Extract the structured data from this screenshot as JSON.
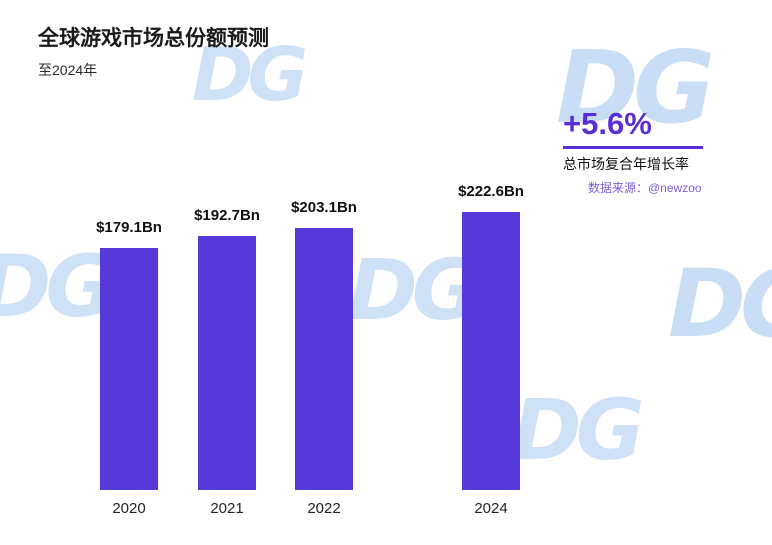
{
  "header": {
    "title": "全球游戏市场总份额预测",
    "subtitle": "至2024年"
  },
  "stats": {
    "growth_value": "+5.6%",
    "growth_label": "总市场复合年增长率",
    "source": "数据来源：@newzoo"
  },
  "watermark": {
    "text": "DG",
    "color": "#cfe1f7"
  },
  "chart_data": {
    "type": "bar",
    "title": "全球游戏市场总份额预测",
    "subtitle": "至2024年",
    "categories": [
      "2020",
      "2021",
      "2022",
      "2024"
    ],
    "values": [
      179.1,
      192.7,
      203.1,
      222.6
    ],
    "value_labels": [
      "$179.1Bn",
      "$192.7Bn",
      "$203.1Bn",
      "$222.6Bn"
    ],
    "unit": "USD Bn",
    "bar_color": "#5639d8",
    "annotations": {
      "cagr": "+5.6%",
      "cagr_label": "总市场复合年增长率",
      "source": "数据来源：@newzoo"
    },
    "layout_hints": {
      "grid": false,
      "axis_lines": false,
      "skipped_category_slot": "2023",
      "value_labels_position": "above-bars"
    }
  }
}
